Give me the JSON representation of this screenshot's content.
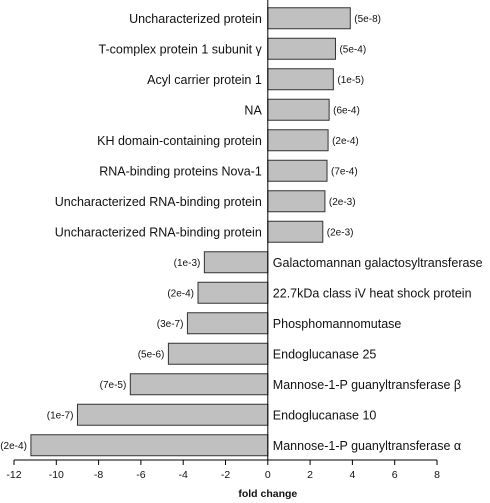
{
  "chart_data": {
    "type": "bar",
    "orientation": "horizontal",
    "categories": [
      "Uncharacterized protein",
      "T-complex protein 1 subunit γ",
      "Acyl carrier protein 1",
      "NA",
      "KH domain-containing protein",
      "RNA-binding proteins Nova-1",
      "Uncharacterized RNA-binding protein",
      "Uncharacterized RNA-binding protein",
      "Galactomannan galactosyltransferase",
      "22.7kDa class iV heat shock protein",
      "Phosphomannomutase",
      "Endoglucanase 25",
      "Mannose-1-P guanyltransferase β",
      "Endoglucanase 10",
      "Mannose-1-P guanyltransferase α"
    ],
    "values": [
      3.9,
      3.2,
      3.1,
      2.9,
      2.85,
      2.8,
      2.7,
      2.6,
      -3.0,
      -3.3,
      -3.8,
      -4.7,
      -6.5,
      -9.0,
      -11.2
    ],
    "annotations": [
      "(5e-8)",
      "(5e-4)",
      "(1e-5)",
      "(6e-4)",
      "(2e-4)",
      "(7e-4)",
      "(2e-3)",
      "(2e-3)",
      "(1e-3)",
      "(2e-4)",
      "(3e-7)",
      "(5e-6)",
      "(7e-5)",
      "(1e-7)",
      "(2e-4)"
    ],
    "xlabel": "fold change",
    "ylabel": "",
    "xlim": [
      -12,
      8
    ],
    "xticks": [
      -12,
      -10,
      -8,
      -6,
      -4,
      -2,
      0,
      2,
      4,
      6,
      8
    ],
    "grid": false,
    "bar_color": "#c0c0c0",
    "bar_edge_color": "#333333"
  }
}
